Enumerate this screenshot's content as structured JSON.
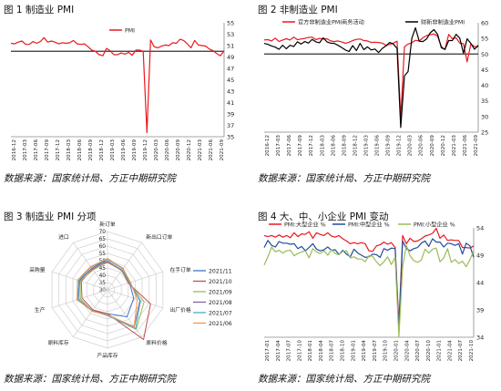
{
  "sources": [
    "数据来源：国家统计局、方正中期研究院",
    "数据来源：国家统计局、方正中期研究院",
    "数据来源：国家统计局、方正中期研究院",
    "数据来源：国家统计局、方正中期研究院"
  ],
  "chart_data": [
    {
      "type": "line",
      "title": "图 1   制造业 PMI",
      "ylim": [
        35,
        55
      ],
      "yticks": [
        35,
        37,
        39,
        41,
        43,
        45,
        47,
        49,
        51,
        53,
        55
      ],
      "x_labels": [
        "2016-12",
        "2017-03",
        "2017-06",
        "2017-09",
        "2017-12",
        "2018-03",
        "2018-06",
        "2018-09",
        "2018-12",
        "2019-03",
        "2019-06",
        "2019-09",
        "2019-12",
        "2020-03",
        "2020-06",
        "2020-09",
        "2020-12",
        "2021-03",
        "2021-06",
        "2021-09"
      ],
      "reference_line": 50,
      "colors": [
        "#e8191f"
      ],
      "series": [
        {
          "name": "PMI",
          "color": "#e8191f",
          "values": [
            51.4,
            51.3,
            51.6,
            51.8,
            51.2,
            51.2,
            51.7,
            51.4,
            51.7,
            52.4,
            51.6,
            51.8,
            51.6,
            51.3,
            51.5,
            51.4,
            51.5,
            51.9,
            51.3,
            51.2,
            51.3,
            50.8,
            50.2,
            50.0,
            49.4,
            49.2,
            50.5,
            50.1,
            49.4,
            49.4,
            49.7,
            49.5,
            49.8,
            49.3,
            50.2,
            50.2,
            50.0,
            35.7,
            52.0,
            50.8,
            50.6,
            50.9,
            51.1,
            51.0,
            51.5,
            51.4,
            52.1,
            51.9,
            51.3,
            50.6,
            51.9,
            51.1,
            51.0,
            50.9,
            50.4,
            50.1,
            49.6,
            49.2,
            50.1
          ]
        }
      ]
    },
    {
      "type": "line",
      "title": "图 2   非制造业 PMI",
      "ylim": [
        25,
        60
      ],
      "yticks": [
        25,
        30,
        35,
        40,
        45,
        50,
        55,
        60
      ],
      "x_labels": [
        "2016-12",
        "2017-03",
        "2017-06",
        "2017-09",
        "2017-12",
        "2018-03",
        "2018-06",
        "2018-09",
        "2018-12",
        "2019-03",
        "2019-06",
        "2019-09",
        "2019-12",
        "2020-03",
        "2020-06",
        "2020-09",
        "2020-12",
        "2021-03",
        "2021-06",
        "2021-09"
      ],
      "reference_line": 50,
      "colors": [
        "#e8191f",
        "#000000"
      ],
      "series": [
        {
          "name": "官方非制造业PMI商务活动",
          "color": "#e8191f",
          "values": [
            54.5,
            54.6,
            54.2,
            55.1,
            54.0,
            54.5,
            54.9,
            54.5,
            55.4,
            54.6,
            54.8,
            55.0,
            55.3,
            55.4,
            54.6,
            55.0,
            54.8,
            54.9,
            54.2,
            54.0,
            54.2,
            53.9,
            53.4,
            53.8,
            54.3,
            54.7,
            54.8,
            54.3,
            54.2,
            53.7,
            53.8,
            53.7,
            53.5,
            52.8,
            53.1,
            53.5,
            54.1,
            29.6,
            52.3,
            53.2,
            53.6,
            54.4,
            54.2,
            55.2,
            55.9,
            56.2,
            56.4,
            55.7,
            52.4,
            51.4,
            56.3,
            54.9,
            55.2,
            53.5,
            53.3,
            47.5,
            53.2,
            52.4,
            52.3
          ]
        },
        {
          "name": "财新非制造业PMI",
          "color": "#000000",
          "values": [
            53.4,
            53.1,
            52.6,
            52.2,
            51.5,
            52.8,
            51.7,
            52.8,
            52.4,
            53.9,
            53.2,
            54.0,
            53.5,
            54.7,
            53.9,
            53.6,
            55.2,
            53.9,
            53.5,
            53.4,
            52.8,
            52.1,
            51.3,
            50.8,
            52.7,
            51.1,
            53.4,
            51.4,
            52.3,
            51.3,
            51.6,
            50.5,
            51.8,
            52.6,
            53.7,
            53.2,
            51.8,
            26.5,
            43.0,
            44.4,
            55.0,
            58.4,
            54.1,
            54.0,
            54.8,
            56.8,
            57.8,
            56.3,
            52.0,
            51.5,
            54.3,
            54.3,
            56.3,
            55.1,
            50.3,
            54.9,
            53.4,
            51.5,
            52.8
          ]
        }
      ]
    },
    {
      "type": "radar",
      "title": "图 3   制造业 PMI 分项",
      "axes": [
        "新订单",
        "新出口订单",
        "在手订单",
        "出厂价格",
        "原料价格",
        "产品库存",
        "原料库存",
        "生产",
        "采购量",
        "进口"
      ],
      "rticks": [
        30,
        35,
        40,
        45,
        50,
        55,
        60,
        65,
        70
      ],
      "rlim": [
        30,
        70
      ],
      "series": [
        {
          "name": "2021/11",
          "color": "#4472c4",
          "values": [
            51.0,
            48.2,
            45.9,
            48.9,
            52.9,
            46.4,
            47.7,
            52.0,
            50.2,
            48.3
          ]
        },
        {
          "name": "2021/10",
          "color": "#c0504d",
          "values": [
            48.8,
            46.6,
            45.0,
            61.1,
            72.1,
            46.4,
            47.0,
            48.4,
            48.9,
            47.5
          ]
        },
        {
          "name": "2021/09",
          "color": "#9bbb59",
          "values": [
            49.3,
            46.2,
            45.6,
            56.4,
            63.5,
            47.2,
            48.2,
            49.5,
            49.7,
            46.8
          ]
        },
        {
          "name": "2021/08",
          "color": "#8064a2",
          "values": [
            49.6,
            46.7,
            45.9,
            53.4,
            61.3,
            47.7,
            47.7,
            50.9,
            50.3,
            48.3
          ]
        },
        {
          "name": "2021/07",
          "color": "#4bacc6",
          "values": [
            50.9,
            47.7,
            46.1,
            53.8,
            62.9,
            47.6,
            47.7,
            51.0,
            50.8,
            49.4
          ]
        },
        {
          "name": "2021/06",
          "color": "#f79646",
          "values": [
            51.5,
            48.1,
            46.6,
            51.4,
            61.2,
            47.1,
            48.0,
            51.9,
            51.7,
            49.7
          ]
        }
      ]
    },
    {
      "type": "line",
      "title": "图 4   大、中、小企业 PMI 变动",
      "ylim": [
        34,
        54
      ],
      "yticks": [
        34,
        39,
        44,
        49,
        54
      ],
      "x_labels": [
        "2017-01",
        "2017-04",
        "2017-07",
        "2017-10",
        "2018-01",
        "2018-04",
        "2018-07",
        "2018-10",
        "2019-01",
        "2019-04",
        "2019-07",
        "2019-10",
        "2020-01",
        "2020-04",
        "2020-07",
        "2020-10",
        "2021-01",
        "2021-04",
        "2021-07",
        "2021-10"
      ],
      "colors": [
        "#e8191f",
        "#1f4e9c",
        "#9bbb59"
      ],
      "series": [
        {
          "name": "PMI:大型企业 %",
          "color": "#e8191f",
          "values": [
            52.6,
            52.4,
            52.6,
            52.3,
            52.7,
            52.3,
            52.6,
            52.2,
            53.1,
            52.4,
            52.9,
            52.8,
            53.3,
            52.1,
            53.1,
            52.8,
            52.6,
            53.1,
            52.5,
            52.3,
            52.6,
            52.0,
            51.6,
            51.1,
            51.3,
            51.1,
            51.3,
            51.1,
            49.8,
            49.7,
            50.7,
            50.9,
            51.4,
            51.0,
            51.3,
            50.4,
            36.3,
            52.6,
            51.1,
            52.1,
            51.5,
            51.6,
            52.0,
            52.5,
            52.7,
            53.0,
            53.9,
            52.1,
            52.7,
            51.7,
            51.8,
            51.7,
            51.7,
            50.4,
            50.4,
            50.3,
            50.7
          ]
        },
        {
          "name": "PMI:中型企业 %",
          "color": "#1f4e9c",
          "values": [
            50.4,
            51.7,
            50.8,
            50.5,
            51.5,
            51.2,
            51.2,
            51.0,
            51.1,
            50.2,
            50.6,
            49.8,
            50.4,
            51.1,
            50.1,
            49.8,
            50.0,
            50.5,
            49.9,
            50.0,
            49.1,
            49.9,
            49.2,
            48.7,
            50.1,
            49.4,
            49.0,
            48.6,
            48.7,
            49.2,
            49.1,
            48.6,
            50.2,
            49.9,
            50.3,
            50.2,
            35.5,
            51.6,
            50.2,
            49.8,
            50.2,
            50.4,
            51.2,
            51.6,
            50.6,
            52.0,
            51.4,
            51.4,
            50.5,
            51.2,
            51.1,
            50.8,
            51.1,
            49.2,
            51.2,
            50.7,
            48.6
          ]
        },
        {
          "name": "PMI:小型企业 %",
          "color": "#9bbb59",
          "values": [
            47.2,
            48.7,
            50.5,
            49.6,
            49.9,
            49.4,
            49.8,
            49.9,
            48.9,
            49.3,
            49.6,
            49.8,
            48.5,
            50.2,
            49.6,
            49.3,
            49.8,
            49.0,
            50.0,
            49.3,
            49.1,
            49.7,
            49.8,
            48.5,
            48.7,
            48.3,
            48.3,
            47.8,
            48.9,
            48.8,
            47.8,
            47.1,
            47.8,
            48.7,
            47.3,
            48.6,
            34.1,
            46.9,
            50.8,
            48.9,
            48.0,
            47.7,
            48.1,
            50.1,
            49.4,
            50.1,
            50.3,
            47.8,
            48.5,
            50.2,
            47.7,
            48.2,
            47.5,
            47.9,
            46.9,
            48.2,
            49.8
          ]
        }
      ]
    }
  ]
}
